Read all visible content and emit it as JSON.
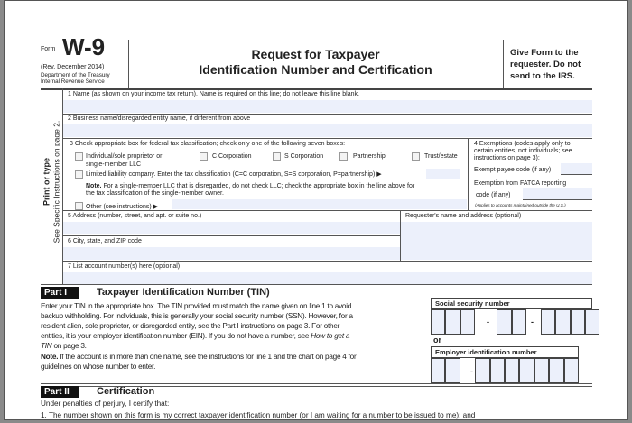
{
  "header": {
    "form_label": "Form",
    "form_number": "W-9",
    "revision": "(Rev. December 2014)",
    "department": "Department of the Treasury",
    "agency": "Internal Revenue Service",
    "title_line1": "Request for Taxpayer",
    "title_line2": "Identification Number and Certification",
    "instruction_line1": "Give Form to the",
    "instruction_line2": "requester. Do not",
    "instruction_line3": "send to the IRS."
  },
  "sidebar": {
    "print_or_type": "Print or type",
    "see_instructions": "See Specific Instructions on page 2."
  },
  "lines": {
    "line1": "1  Name (as shown on your income tax return). Name is required on this line; do not leave this line blank.",
    "line2": "2  Business name/disregarded entity name, if different from above",
    "line3": "3  Check appropriate box for federal tax classification; check only one of the following seven boxes:",
    "options": {
      "individual_1": "Individual/sole proprietor or",
      "individual_2": "single-member LLC",
      "c_corp": "C Corporation",
      "s_corp": "S Corporation",
      "partnership": "Partnership",
      "trust": "Trust/estate",
      "llc": "Limited liability company. Enter the tax classification (C=C corporation, S=S corporation, P=partnership) ▶",
      "other": "Other (see instructions) ▶"
    },
    "note_label": "Note.",
    "note_1": "For a single-member LLC that is disregarded, do not check LLC; check the appropriate box in the line above for",
    "note_2": "the tax classification of the single-member owner.",
    "line4_1": "4  Exemptions (codes apply only to",
    "line4_2": "certain entities, not individuals; see",
    "line4_3": "instructions on page 3):",
    "exempt_payee": "Exempt payee code (if any)",
    "fatca_1": "Exemption from FATCA reporting",
    "fatca_2": "code (if any)",
    "fatca_note": "(Applies to accounts maintained outside the U.S.)",
    "line5": "5  Address (number, street, and apt. or suite no.)",
    "requester": "Requester's name and address (optional)",
    "line6": "6  City, state, and ZIP code",
    "line7": "7  List account number(s) here (optional)"
  },
  "part1": {
    "tag": "Part I",
    "title": "Taxpayer Identification Number (TIN)",
    "text": [
      "Enter your TIN in the appropriate box. The TIN provided must match the name given on line 1 to avoid",
      "backup withholding. For individuals, this is generally your social security number (SSN). However, for a",
      "resident alien, sole proprietor, or disregarded entity, see the Part I instructions on page 3. For other",
      "entities, it is your employer identification number (EIN). If you do not have a number, see "
    ],
    "italic_1": "How to get a",
    "italic_2": "TIN",
    "text_end": " on page 3.",
    "note_label": "Note.",
    "note_1": " If the account is in more than one name, see the instructions for line 1 and the chart on page 4 for",
    "note_2": "guidelines on whose number to enter.",
    "ssn_label": "Social security number",
    "or": "or",
    "ein_label": "Employer identification number",
    "dash": "-"
  },
  "part2": {
    "tag": "Part II",
    "title": "Certification",
    "intro": "Under penalties of perjury, I certify that:",
    "item1": "1.  The number shown on this form is my correct taxpayer identification number (or I am waiting for a number to be issued to me); and"
  }
}
